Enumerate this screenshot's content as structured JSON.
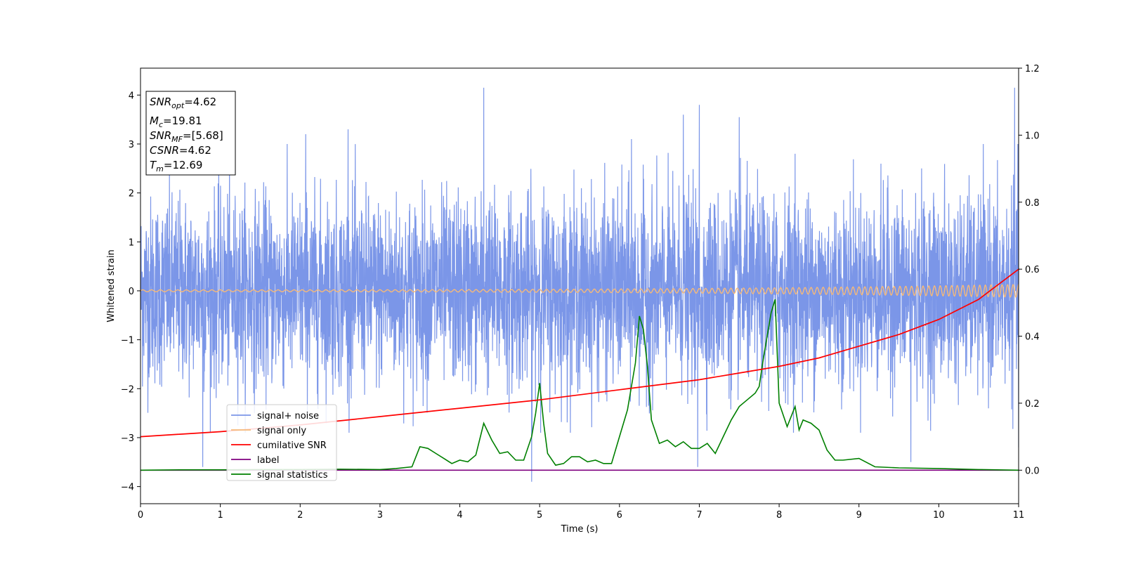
{
  "chart_data": {
    "type": "line",
    "title": "",
    "xlabel": "Time (s)",
    "ylabel": "Whitened strain",
    "xlim": [
      0,
      11
    ],
    "ylim": [
      -4.35,
      4.55
    ],
    "y2lim": [
      -0.1,
      1.2
    ],
    "x_ticks": [
      "0",
      "1",
      "2",
      "3",
      "4",
      "5",
      "6",
      "7",
      "8",
      "9",
      "10",
      "11"
    ],
    "y_ticks": [
      "−4",
      "−3",
      "−2",
      "−1",
      "0",
      "1",
      "2",
      "3",
      "4"
    ],
    "y2_ticks": [
      "0.0",
      "0.2",
      "0.4",
      "0.6",
      "0.8",
      "1.0",
      "1.2"
    ],
    "grid": false,
    "legend_position": "lower-left",
    "colors": {
      "signal_noise": "#7b96e8",
      "signal_only": "#f5b97a",
      "cumulative_snr": "#ff0000",
      "label": "#800080",
      "signal_statistics": "#008000"
    },
    "series": [
      {
        "name": "signal+ noise",
        "axis": "left",
        "description_style": "dense noisy waveform",
        "sigma": 1.0,
        "spikes": [
          [
            0.78,
            -3.6
          ],
          [
            2.07,
            3.2
          ],
          [
            2.6,
            3.3
          ],
          [
            4.3,
            4.15
          ],
          [
            4.9,
            -3.9
          ],
          [
            6.15,
            3.1
          ],
          [
            6.8,
            3.6
          ],
          [
            6.98,
            -3.6
          ],
          [
            7.0,
            3.8
          ],
          [
            7.5,
            3.55
          ],
          [
            8.2,
            2.8
          ],
          [
            9.65,
            -3.5
          ],
          [
            10.95,
            4.15
          ],
          [
            11.0,
            -3.2
          ]
        ]
      },
      {
        "name": "signal only",
        "axis": "left",
        "description_style": "chirp whose amplitude grows toward the end",
        "amplitude_start": 0.02,
        "amplitude_end": 0.13
      },
      {
        "name": "cumilative SNR",
        "axis": "right",
        "x": [
          0,
          1,
          2,
          3,
          4,
          5,
          6,
          7,
          7.5,
          8,
          8.5,
          9,
          9.5,
          10,
          10.5,
          11
        ],
        "values": [
          0.1,
          0.115,
          0.135,
          0.16,
          0.185,
          0.21,
          0.24,
          0.27,
          0.29,
          0.31,
          0.335,
          0.37,
          0.405,
          0.45,
          0.51,
          0.6
        ]
      },
      {
        "name": "label",
        "axis": "right",
        "x": [
          0,
          11
        ],
        "values": [
          0,
          0
        ]
      },
      {
        "name": "signal statistics",
        "axis": "right",
        "x": [
          0,
          0.5,
          1,
          1.5,
          2,
          2.5,
          3,
          3.2,
          3.4,
          3.5,
          3.6,
          3.7,
          3.8,
          3.9,
          4.0,
          4.1,
          4.2,
          4.3,
          4.4,
          4.5,
          4.6,
          4.7,
          4.8,
          4.9,
          4.95,
          5.0,
          5.05,
          5.1,
          5.2,
          5.3,
          5.4,
          5.5,
          5.6,
          5.7,
          5.8,
          5.9,
          6.0,
          6.1,
          6.2,
          6.25,
          6.3,
          6.35,
          6.4,
          6.5,
          6.6,
          6.7,
          6.8,
          6.9,
          7.0,
          7.1,
          7.2,
          7.3,
          7.4,
          7.5,
          7.6,
          7.7,
          7.75,
          7.8,
          7.85,
          7.9,
          7.95,
          8.0,
          8.1,
          8.2,
          8.25,
          8.3,
          8.4,
          8.5,
          8.6,
          8.7,
          8.8,
          9.0,
          9.2,
          9.5,
          10.0,
          10.5,
          11.0
        ],
        "values": [
          0.0,
          0.001,
          0.001,
          0.002,
          0.002,
          0.003,
          0.002,
          0.005,
          0.01,
          0.07,
          0.065,
          0.05,
          0.035,
          0.02,
          0.03,
          0.025,
          0.045,
          0.14,
          0.09,
          0.05,
          0.055,
          0.03,
          0.03,
          0.1,
          0.17,
          0.26,
          0.14,
          0.05,
          0.015,
          0.02,
          0.04,
          0.04,
          0.025,
          0.03,
          0.02,
          0.02,
          0.1,
          0.18,
          0.32,
          0.46,
          0.42,
          0.31,
          0.15,
          0.08,
          0.09,
          0.07,
          0.085,
          0.065,
          0.065,
          0.08,
          0.05,
          0.1,
          0.15,
          0.19,
          0.21,
          0.23,
          0.25,
          0.33,
          0.4,
          0.47,
          0.51,
          0.2,
          0.13,
          0.19,
          0.12,
          0.15,
          0.14,
          0.12,
          0.06,
          0.03,
          0.03,
          0.035,
          0.01,
          0.007,
          0.005,
          0.002,
          0.0
        ]
      }
    ]
  },
  "info_box": {
    "lines": [
      {
        "base": "SNR",
        "sub": "opt",
        "rest": "=4.62"
      },
      {
        "base": "M",
        "sub": "c",
        "rest": "=19.81"
      },
      {
        "base": "SNR",
        "sub": "MF",
        "rest": "=[5.68]"
      },
      {
        "base": "CSNR",
        "sub": "",
        "rest": "=4.62"
      },
      {
        "base": "T",
        "sub": "m",
        "rest": "=12.69"
      }
    ]
  }
}
